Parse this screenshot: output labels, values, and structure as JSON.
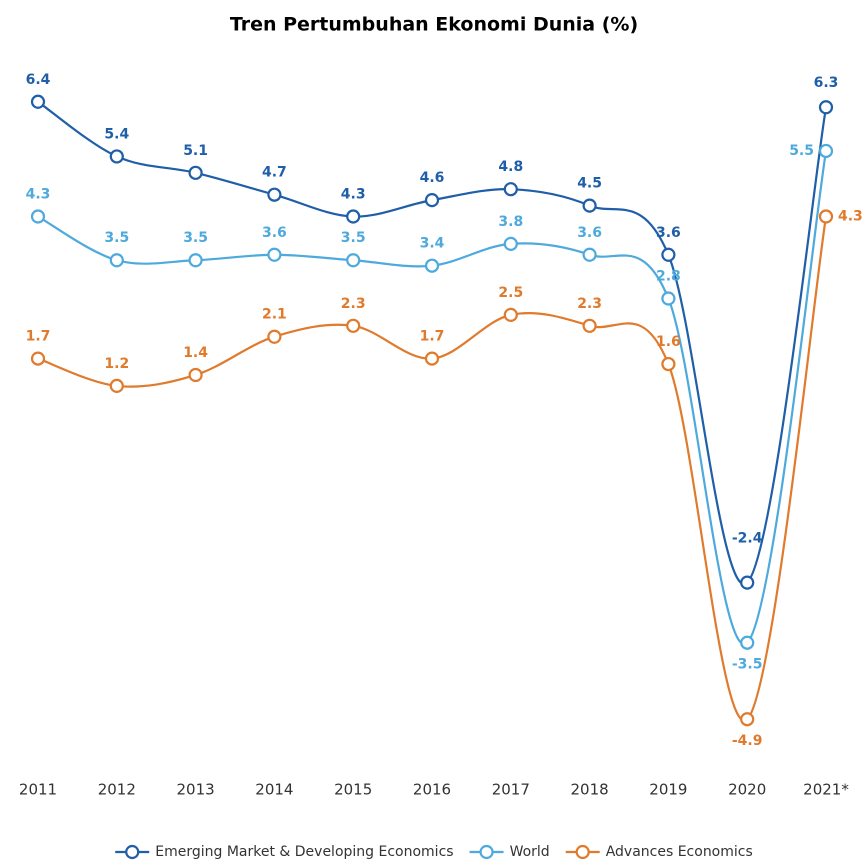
{
  "chart_data": {
    "type": "line",
    "title": "Tren Pertumbuhan Ekonomi Dunia (%)",
    "categories": [
      "2011",
      "2012",
      "2013",
      "2014",
      "2015",
      "2016",
      "2017",
      "2018",
      "2019",
      "2020",
      "2021*"
    ],
    "series": [
      {
        "name": "Emerging Market & Developing Economics",
        "color": "#1f5ea8",
        "values": [
          6.4,
          5.4,
          5.1,
          4.7,
          4.3,
          4.6,
          4.8,
          4.5,
          3.6,
          -2.4,
          6.3
        ]
      },
      {
        "name": "World",
        "color": "#4ea9dd",
        "values": [
          4.3,
          3.5,
          3.5,
          3.6,
          3.5,
          3.4,
          3.8,
          3.6,
          2.8,
          -3.5,
          5.5
        ]
      },
      {
        "name": "Advances Economics",
        "color": "#e07a2c",
        "values": [
          1.7,
          1.2,
          1.4,
          2.1,
          2.3,
          1.7,
          2.5,
          2.3,
          1.6,
          -4.9,
          4.3
        ]
      }
    ],
    "ylim": [
      -5.5,
      7
    ],
    "legend": "bottom",
    "grid": false
  }
}
